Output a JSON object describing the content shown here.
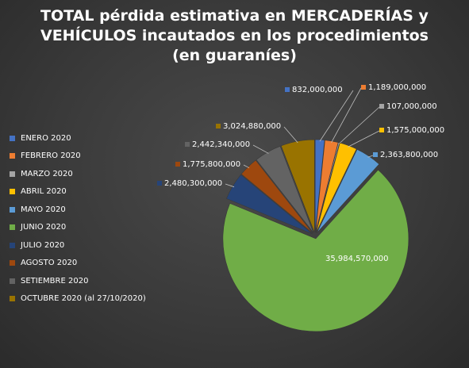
{
  "title_lines": [
    "TOTAL pérdida estimativa en MERCADERÍAS y",
    "VEHÍCULOS incautados en los procedimientos",
    "(en guaraníes)"
  ],
  "chart_data": {
    "type": "pie",
    "title": "TOTAL pérdida estimativa en MERCADERÍAS y VEHÍCULOS incautados en los procedimientos (en guaraníes)",
    "legend_position": "left",
    "slices": [
      {
        "label": "ENERO 2020",
        "value": 832000000,
        "value_label": "832,000,000",
        "color": "#4472c4"
      },
      {
        "label": "FEBRERO 2020",
        "value": 1189000000,
        "value_label": "1,189,000,000",
        "color": "#ed7d31"
      },
      {
        "label": "MARZO 2020",
        "value": 107000000,
        "value_label": "107,000,000",
        "color": "#a5a5a5"
      },
      {
        "label": "ABRIL 2020",
        "value": 1575000000,
        "value_label": "1,575,000,000",
        "color": "#ffc000"
      },
      {
        "label": "MAYO 2020",
        "value": 2363800000,
        "value_label": "2,363,800,000",
        "color": "#5b9bd5"
      },
      {
        "label": "JUNIO 2020",
        "value": 35984570000,
        "value_label": "35,984,570,000",
        "color": "#70ad47"
      },
      {
        "label": "JULIO 2020",
        "value": 2480300000,
        "value_label": "2,480,300,000",
        "color": "#264478"
      },
      {
        "label": "AGOSTO 2020",
        "value": 1775800000,
        "value_label": "1,775,800,000",
        "color": "#9e480e"
      },
      {
        "label": "SETIEMBRE 2020",
        "value": 2442340000,
        "value_label": "2,442,340,000",
        "color": "#636363"
      },
      {
        "label": "OCTUBRE 2020 (al 27/10/2020)",
        "value": 3024880000,
        "value_label": "3,024,880,000",
        "color": "#997300"
      }
    ]
  }
}
